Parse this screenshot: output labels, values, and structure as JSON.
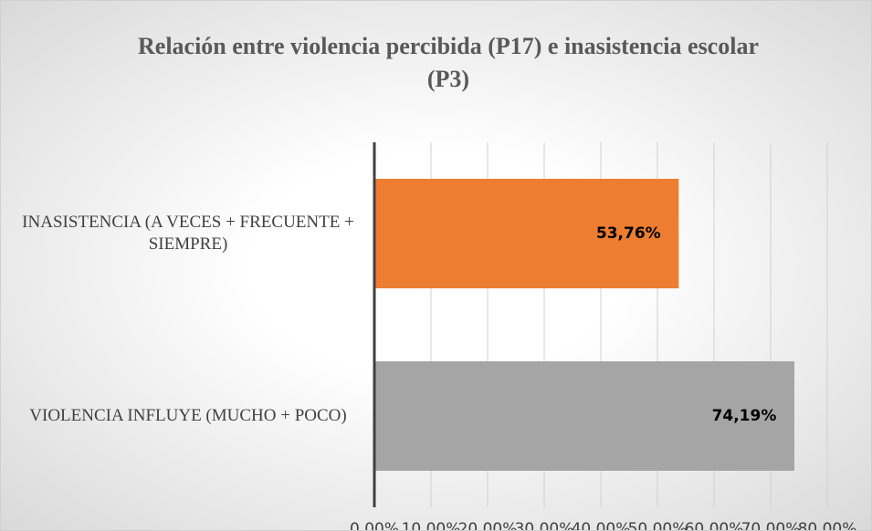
{
  "chart_data": {
    "type": "bar",
    "orientation": "horizontal",
    "title": "Relación entre violencia percibida (P17) e inasistencia escolar (P3)",
    "categories": [
      "INASISTENCIA (A VECES + FRECUENTE + SIEMPRE)",
      "VIOLENCIA INFLUYE (MUCHO + POCO)"
    ],
    "values": [
      53.76,
      74.19
    ],
    "value_labels": [
      "53,76%",
      "74,19%"
    ],
    "colors": [
      "#ed7d31",
      "#a5a5a5"
    ],
    "xlim": [
      0,
      80
    ],
    "xticks": [
      {
        "value": 0,
        "label": "0,00%"
      },
      {
        "value": 10,
        "label": "10,00%"
      },
      {
        "value": 20,
        "label": "20,00%"
      },
      {
        "value": 30,
        "label": "30,00%"
      },
      {
        "value": 40,
        "label": "40,00%"
      },
      {
        "value": 50,
        "label": "50,00%"
      },
      {
        "value": 60,
        "label": "60,00%"
      },
      {
        "value": 70,
        "label": "70,00%"
      },
      {
        "value": 80,
        "label": "80,00%"
      }
    ],
    "grid": true
  }
}
